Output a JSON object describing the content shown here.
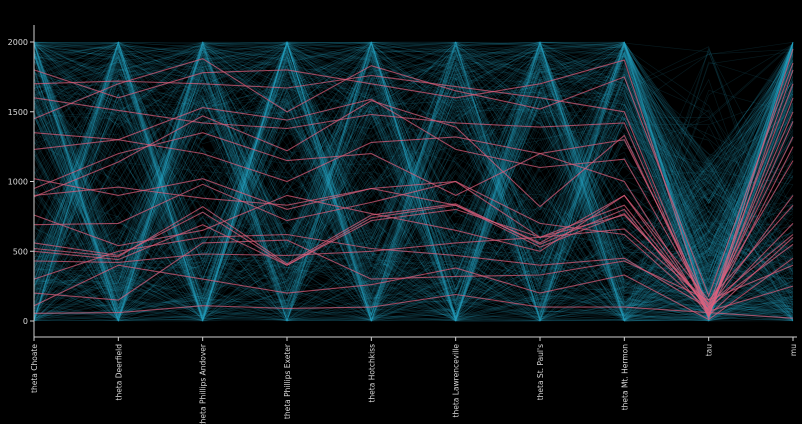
{
  "chart_data": {
    "type": "parallel-coordinates",
    "dimensions": [
      "theta Choate",
      "theta Deerfield",
      "theta Phillips Andover",
      "theta Phillips Exeter",
      "theta Hotchkiss",
      "theta Lawrenceville",
      "theta St. Paul's",
      "theta Mt. Hermon",
      "tau",
      "mu"
    ],
    "y_ticks": [
      "0",
      "500",
      "1000",
      "1500",
      "2000"
    ],
    "y_range": [
      0,
      2000
    ],
    "grid": false,
    "background_color": "#000000",
    "series": [
      {
        "color": "#e0607e",
        "highlighted": true,
        "lines": [
          [
            520,
            460,
            820,
            410,
            760,
            840,
            550,
            800,
            40,
            600
          ],
          [
            890,
            1140,
            1470,
            1220,
            1580,
            1390,
            820,
            1330,
            60,
            1430
          ],
          [
            560,
            470,
            780,
            400,
            740,
            830,
            530,
            770,
            100,
            550
          ],
          [
            55,
            60,
            110,
            90,
            100,
            190,
            100,
            100,
            60,
            20
          ],
          [
            500,
            440,
            690,
            400,
            720,
            800,
            600,
            760,
            120,
            620
          ],
          [
            900,
            960,
            880,
            830,
            950,
            1000,
            600,
            830,
            80,
            1500
          ],
          [
            1700,
            1720,
            1700,
            1670,
            1760,
            1680,
            1600,
            1500,
            30,
            1800
          ],
          [
            1350,
            1300,
            1530,
            1440,
            1590,
            1230,
            1100,
            1160,
            100,
            1320
          ],
          [
            1020,
            900,
            1020,
            800,
            950,
            830,
            560,
            900,
            150,
            830
          ],
          [
            300,
            500,
            600,
            620,
            520,
            470,
            400,
            450,
            90,
            900
          ],
          [
            1600,
            1510,
            1420,
            1380,
            1480,
            1420,
            1390,
            1420,
            20,
            1950
          ],
          [
            200,
            150,
            560,
            580,
            300,
            320,
            330,
            430,
            150,
            400
          ],
          [
            1230,
            1300,
            1200,
            1000,
            1280,
            1320,
            1200,
            1300,
            110,
            1700
          ],
          [
            690,
            700,
            980,
            720,
            850,
            1000,
            700,
            620,
            80,
            700
          ],
          [
            1450,
            1700,
            1880,
            1500,
            1830,
            1650,
            1520,
            1750,
            180,
            1850
          ],
          [
            430,
            420,
            480,
            470,
            500,
            560,
            600,
            660,
            130,
            1150
          ],
          [
            760,
            540,
            650,
            900,
            770,
            650,
            500,
            900,
            70,
            250
          ],
          [
            1800,
            1600,
            1780,
            1800,
            1700,
            1600,
            1700,
            1870,
            40,
            1600
          ],
          [
            110,
            400,
            300,
            200,
            260,
            380,
            200,
            330,
            10,
            450
          ],
          [
            950,
            1200,
            1350,
            1150,
            1200,
            900,
            1200,
            1000,
            50,
            1250
          ]
        ]
      }
    ],
    "background_series": {
      "color": "#2ea8c8",
      "count": 520,
      "pattern": "v-shaped samples: each coordinate alternates between extremes of [0, 2000]; tau concentrated near 0-300"
    }
  }
}
